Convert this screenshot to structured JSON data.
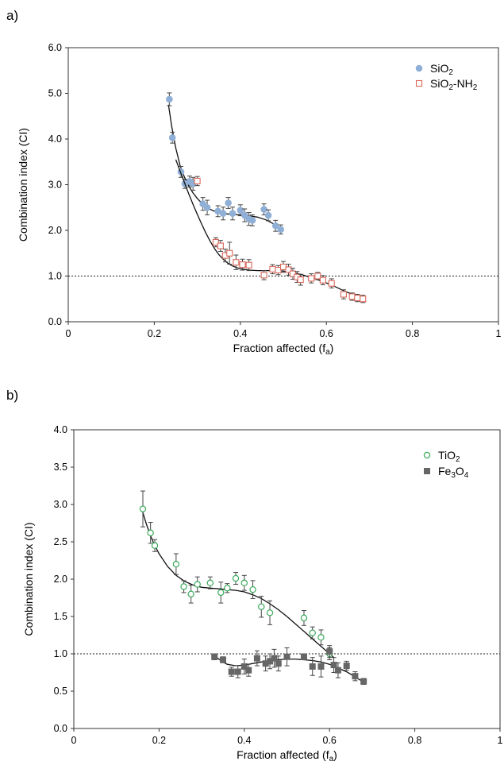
{
  "chart_data": [
    {
      "panel_label": "a)",
      "type": "scatter",
      "xlabel": "Fraction affected (f",
      "xlabel_sub": "a",
      "xlabel_end": ")",
      "ylabel": "Combination index (CI)",
      "xlim": [
        0,
        1
      ],
      "ylim": [
        0,
        6
      ],
      "x_ticks": [
        0,
        0.2,
        0.4,
        0.6,
        0.8,
        1
      ],
      "x_tick_labels": [
        "0",
        "0.2",
        "0.4",
        "0.6",
        "0.8",
        "1"
      ],
      "y_ticks": [
        0,
        1,
        2,
        3,
        4,
        5,
        6
      ],
      "y_tick_labels": [
        "0.0",
        "1.0",
        "2.0",
        "3.0",
        "4.0",
        "5.0",
        "6.0"
      ],
      "reference_line": 1.0,
      "legend_position": "top-right",
      "series": [
        {
          "name": "SiO",
          "name_sub": "2",
          "name_rest": "",
          "marker": "filled-circle",
          "color": "#8fafd6",
          "points": [
            [
              0.235,
              4.87,
              0.14
            ],
            [
              0.242,
              4.03,
              0.12
            ],
            [
              0.262,
              3.28,
              0.12
            ],
            [
              0.271,
              3.02,
              0.1
            ],
            [
              0.282,
              3.07,
              0.12
            ],
            [
              0.29,
              3.02,
              0.14
            ],
            [
              0.313,
              2.58,
              0.14
            ],
            [
              0.323,
              2.5,
              0.16
            ],
            [
              0.348,
              2.42,
              0.12
            ],
            [
              0.36,
              2.37,
              0.14
            ],
            [
              0.372,
              2.6,
              0.12
            ],
            [
              0.382,
              2.37,
              0.14
            ],
            [
              0.4,
              2.44,
              0.12
            ],
            [
              0.41,
              2.33,
              0.14
            ],
            [
              0.42,
              2.25,
              0.14
            ],
            [
              0.428,
              2.22,
              0.12
            ],
            [
              0.455,
              2.46,
              0.12
            ],
            [
              0.465,
              2.33,
              0.12
            ],
            [
              0.482,
              2.1,
              0.12
            ],
            [
              0.494,
              2.02,
              0.1
            ]
          ],
          "fit": [
            [
              0.233,
              4.75
            ],
            [
              0.24,
              4.3
            ],
            [
              0.25,
              3.8
            ],
            [
              0.26,
              3.42
            ],
            [
              0.27,
              3.17
            ],
            [
              0.28,
              2.97
            ],
            [
              0.29,
              2.82
            ],
            [
              0.3,
              2.7
            ],
            [
              0.31,
              2.6
            ],
            [
              0.32,
              2.52
            ],
            [
              0.33,
              2.46
            ],
            [
              0.34,
              2.42
            ],
            [
              0.35,
              2.39
            ],
            [
              0.36,
              2.37
            ],
            [
              0.37,
              2.36
            ],
            [
              0.38,
              2.35
            ],
            [
              0.4,
              2.34
            ],
            [
              0.42,
              2.32
            ],
            [
              0.44,
              2.29
            ],
            [
              0.46,
              2.23
            ],
            [
              0.48,
              2.13
            ],
            [
              0.495,
              2.02
            ]
          ]
        },
        {
          "name": "SiO",
          "name_sub": "2",
          "name_rest": "-NH",
          "name_sub2": "2",
          "marker": "open-square",
          "color": "#d9675a",
          "points": [
            [
              0.3,
              3.08,
              0.1
            ],
            [
              0.343,
              1.74,
              0.1
            ],
            [
              0.354,
              1.66,
              0.12
            ],
            [
              0.365,
              1.45,
              0.14
            ],
            [
              0.375,
              1.5,
              0.24
            ],
            [
              0.39,
              1.3,
              0.16
            ],
            [
              0.405,
              1.25,
              0.12
            ],
            [
              0.42,
              1.24,
              0.12
            ],
            [
              0.455,
              1.02,
              0.1
            ],
            [
              0.475,
              1.15,
              0.1
            ],
            [
              0.488,
              1.13,
              0.1
            ],
            [
              0.5,
              1.2,
              0.12
            ],
            [
              0.512,
              1.14,
              0.12
            ],
            [
              0.522,
              1.05,
              0.12
            ],
            [
              0.532,
              0.98,
              0.12
            ],
            [
              0.54,
              0.92,
              0.12
            ],
            [
              0.565,
              0.95,
              0.1
            ],
            [
              0.58,
              1.0,
              0.08
            ],
            [
              0.592,
              0.91,
              0.1
            ],
            [
              0.612,
              0.84,
              0.1
            ],
            [
              0.64,
              0.6,
              0.1
            ],
            [
              0.66,
              0.55,
              0.08
            ],
            [
              0.672,
              0.52,
              0.08
            ],
            [
              0.685,
              0.5,
              0.08
            ]
          ],
          "fit": [
            [
              0.25,
              3.55
            ],
            [
              0.26,
              3.3
            ],
            [
              0.27,
              3.05
            ],
            [
              0.28,
              2.8
            ],
            [
              0.29,
              2.57
            ],
            [
              0.3,
              2.35
            ],
            [
              0.31,
              2.14
            ],
            [
              0.32,
              1.94
            ],
            [
              0.33,
              1.76
            ],
            [
              0.34,
              1.6
            ],
            [
              0.35,
              1.47
            ],
            [
              0.36,
              1.37
            ],
            [
              0.37,
              1.29
            ],
            [
              0.38,
              1.23
            ],
            [
              0.39,
              1.19
            ],
            [
              0.4,
              1.16
            ],
            [
              0.42,
              1.13
            ],
            [
              0.44,
              1.12
            ],
            [
              0.46,
              1.12
            ],
            [
              0.48,
              1.12
            ],
            [
              0.5,
              1.11
            ],
            [
              0.52,
              1.08
            ],
            [
              0.54,
              1.04
            ],
            [
              0.56,
              0.98
            ],
            [
              0.58,
              0.92
            ],
            [
              0.6,
              0.85
            ],
            [
              0.62,
              0.77
            ],
            [
              0.64,
              0.68
            ],
            [
              0.66,
              0.6
            ],
            [
              0.685,
              0.52
            ]
          ]
        }
      ]
    },
    {
      "panel_label": "b)",
      "type": "scatter",
      "xlabel": "Fraction affected (f",
      "xlabel_sub": "a",
      "xlabel_end": ")",
      "ylabel": "Combination index (CI)",
      "xlim": [
        0,
        1
      ],
      "ylim": [
        0,
        4
      ],
      "x_ticks": [
        0,
        0.2,
        0.4,
        0.6,
        0.8,
        1
      ],
      "x_tick_labels": [
        "0",
        "0.2",
        "0.4",
        "0.6",
        "0.8",
        "1"
      ],
      "y_ticks": [
        0,
        0.5,
        1,
        1.5,
        2,
        2.5,
        3,
        3.5,
        4
      ],
      "y_tick_labels": [
        "0.0",
        "0.5",
        "1.0",
        "1.5",
        "2.0",
        "2.5",
        "3.0",
        "3.5",
        "4.0"
      ],
      "reference_line": 1.0,
      "legend_position": "top-right",
      "series": [
        {
          "name": "TiO",
          "name_sub": "2",
          "name_rest": "",
          "marker": "open-circle",
          "color": "#3aaa5c",
          "points": [
            [
              0.162,
              2.94,
              0.24
            ],
            [
              0.18,
              2.62,
              0.14
            ],
            [
              0.19,
              2.45,
              0.08
            ],
            [
              0.24,
              2.2,
              0.14
            ],
            [
              0.258,
              1.9,
              0.08
            ],
            [
              0.275,
              1.8,
              0.12
            ],
            [
              0.29,
              1.93,
              0.1
            ],
            [
              0.32,
              1.95,
              0.08
            ],
            [
              0.345,
              1.82,
              0.14
            ],
            [
              0.36,
              1.88,
              0.06
            ],
            [
              0.38,
              2.01,
              0.08
            ],
            [
              0.4,
              1.95,
              0.1
            ],
            [
              0.42,
              1.86,
              0.12
            ],
            [
              0.44,
              1.63,
              0.14
            ],
            [
              0.46,
              1.55,
              0.16
            ],
            [
              0.54,
              1.48,
              0.1
            ],
            [
              0.56,
              1.28,
              0.08
            ],
            [
              0.58,
              1.22,
              0.1
            ],
            [
              0.6,
              1.0,
              0.08
            ]
          ],
          "fit": [
            [
              0.16,
              2.93
            ],
            [
              0.17,
              2.74
            ],
            [
              0.18,
              2.58
            ],
            [
              0.19,
              2.45
            ],
            [
              0.2,
              2.34
            ],
            [
              0.22,
              2.17
            ],
            [
              0.24,
              2.05
            ],
            [
              0.26,
              1.97
            ],
            [
              0.28,
              1.92
            ],
            [
              0.3,
              1.89
            ],
            [
              0.32,
              1.88
            ],
            [
              0.34,
              1.87
            ],
            [
              0.36,
              1.86
            ],
            [
              0.38,
              1.85
            ],
            [
              0.4,
              1.83
            ],
            [
              0.42,
              1.79
            ],
            [
              0.44,
              1.74
            ],
            [
              0.46,
              1.67
            ],
            [
              0.48,
              1.59
            ],
            [
              0.5,
              1.5
            ],
            [
              0.52,
              1.4
            ],
            [
              0.54,
              1.3
            ],
            [
              0.56,
              1.2
            ],
            [
              0.58,
              1.1
            ],
            [
              0.6,
              1.0
            ],
            [
              0.61,
              0.95
            ]
          ]
        },
        {
          "name": "Fe",
          "name_sub": "3",
          "name_rest": "O",
          "name_sub2": "4",
          "marker": "filled-square",
          "color": "#666666",
          "points": [
            [
              0.33,
              0.96,
              0.04
            ],
            [
              0.35,
              0.92,
              0.04
            ],
            [
              0.37,
              0.76,
              0.06
            ],
            [
              0.385,
              0.76,
              0.08
            ],
            [
              0.4,
              0.83,
              0.1
            ],
            [
              0.41,
              0.78,
              0.08
            ],
            [
              0.43,
              0.94,
              0.1
            ],
            [
              0.45,
              0.87,
              0.1
            ],
            [
              0.46,
              0.9,
              0.1
            ],
            [
              0.47,
              0.94,
              0.12
            ],
            [
              0.48,
              0.87,
              0.1
            ],
            [
              0.5,
              0.96,
              0.12
            ],
            [
              0.54,
              0.96,
              0.04
            ],
            [
              0.56,
              0.83,
              0.12
            ],
            [
              0.58,
              0.83,
              0.14
            ],
            [
              0.6,
              1.03,
              0.08
            ],
            [
              0.61,
              0.85,
              0.1
            ],
            [
              0.62,
              0.78,
              0.1
            ],
            [
              0.64,
              0.84,
              0.06
            ],
            [
              0.66,
              0.7,
              0.06
            ],
            [
              0.68,
              0.63,
              0.04
            ]
          ],
          "fit": [
            [
              0.33,
              0.98
            ],
            [
              0.34,
              0.93
            ],
            [
              0.35,
              0.89
            ],
            [
              0.36,
              0.86
            ],
            [
              0.37,
              0.85
            ],
            [
              0.38,
              0.84
            ],
            [
              0.4,
              0.85
            ],
            [
              0.42,
              0.87
            ],
            [
              0.44,
              0.89
            ],
            [
              0.46,
              0.91
            ],
            [
              0.48,
              0.92
            ],
            [
              0.5,
              0.93
            ],
            [
              0.52,
              0.93
            ],
            [
              0.54,
              0.92
            ],
            [
              0.56,
              0.91
            ],
            [
              0.58,
              0.89
            ],
            [
              0.6,
              0.86
            ],
            [
              0.62,
              0.81
            ],
            [
              0.64,
              0.76
            ],
            [
              0.66,
              0.69
            ],
            [
              0.68,
              0.62
            ]
          ]
        }
      ]
    }
  ]
}
